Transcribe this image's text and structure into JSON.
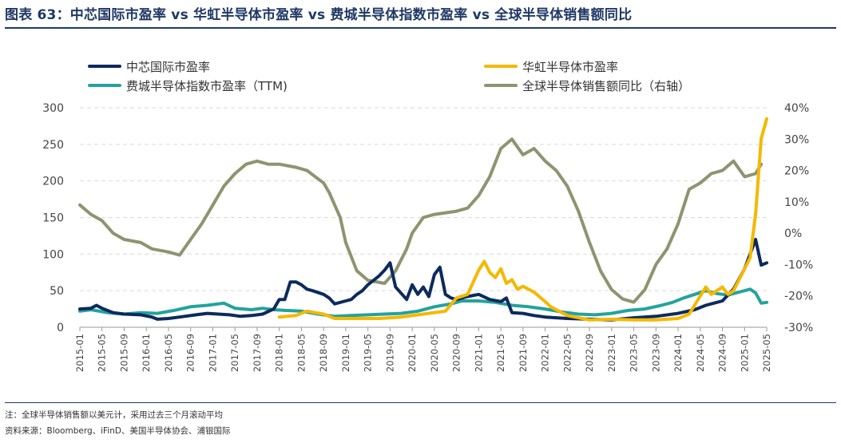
{
  "title": "图表 63：中芯国际市盈率 vs 华虹半导体市盈率 vs 费城半导体指数市盈率 vs 全球半导体销售额同比",
  "note": "注：全球半导体销售额以美元计，采用过去三个月滚动平均",
  "source": "资料来源：Bloomberg、iFinD、美国半导体协会、浦银国际",
  "chart_data": {
    "type": "line",
    "left_axis": {
      "range": [
        0,
        300
      ],
      "ticks": [
        "0",
        "50",
        "100",
        "150",
        "200",
        "250",
        "300"
      ]
    },
    "right_axis": {
      "range": [
        -30,
        40
      ],
      "ticks": [
        "-30%",
        "-20%",
        "-10%",
        "0%",
        "10%",
        "20%",
        "30%",
        "40%"
      ]
    },
    "x_axis_ticks": [
      "2015-01",
      "2015-05",
      "2015-09",
      "2016-01",
      "2016-05",
      "2016-09",
      "2017-01",
      "2017-05",
      "2017-09",
      "2018-01",
      "2018-05",
      "2018-09",
      "2019-01",
      "2019-05",
      "2019-09",
      "2020-01",
      "2020-05",
      "2020-09",
      "2021-01",
      "2021-05",
      "2021-09",
      "2022-01",
      "2022-05",
      "2022-09",
      "2023-01",
      "2023-05",
      "2023-09",
      "2024-01",
      "2024-05",
      "2024-09",
      "2025-01",
      "2025-05"
    ],
    "grid": "horizontal dashed",
    "legend_position": "top",
    "series": [
      {
        "name": "中芯国际市盈率",
        "axis": "left",
        "color": "#0d2a5e",
        "points": [
          [
            "2015-01",
            25
          ],
          [
            "2015-03",
            26
          ],
          [
            "2015-04",
            30
          ],
          [
            "2015-05",
            26
          ],
          [
            "2015-07",
            20
          ],
          [
            "2015-09",
            18
          ],
          [
            "2015-12",
            17
          ],
          [
            "2016-02",
            14
          ],
          [
            "2016-03",
            11
          ],
          [
            "2016-05",
            12
          ],
          [
            "2016-07",
            14
          ],
          [
            "2016-10",
            17
          ],
          [
            "2016-12",
            19
          ],
          [
            "2017-02",
            18
          ],
          [
            "2017-04",
            17
          ],
          [
            "2017-06",
            15
          ],
          [
            "2017-08",
            16
          ],
          [
            "2017-10",
            18
          ],
          [
            "2017-12",
            25
          ],
          [
            "2018-01",
            38
          ],
          [
            "2018-02",
            38
          ],
          [
            "2018-03",
            62
          ],
          [
            "2018-04",
            62
          ],
          [
            "2018-05",
            58
          ],
          [
            "2018-06",
            52
          ],
          [
            "2018-07",
            50
          ],
          [
            "2018-09",
            45
          ],
          [
            "2018-10",
            40
          ],
          [
            "2018-11",
            32
          ],
          [
            "2019-01",
            36
          ],
          [
            "2019-02",
            38
          ],
          [
            "2019-03",
            45
          ],
          [
            "2019-04",
            50
          ],
          [
            "2019-05",
            58
          ],
          [
            "2019-07",
            70
          ],
          [
            "2019-08",
            78
          ],
          [
            "2019-09",
            88
          ],
          [
            "2019-10",
            55
          ],
          [
            "2019-12",
            38
          ],
          [
            "2020-01",
            58
          ],
          [
            "2020-02",
            45
          ],
          [
            "2020-03",
            55
          ],
          [
            "2020-04",
            42
          ],
          [
            "2020-05",
            72
          ],
          [
            "2020-06",
            82
          ],
          [
            "2020-07",
            45
          ],
          [
            "2020-08",
            40
          ],
          [
            "2020-09",
            38
          ],
          [
            "2020-11",
            42
          ],
          [
            "2021-01",
            45
          ],
          [
            "2021-03",
            38
          ],
          [
            "2021-05",
            35
          ],
          [
            "2021-06",
            40
          ],
          [
            "2021-07",
            20
          ],
          [
            "2021-09",
            19
          ],
          [
            "2021-11",
            16
          ],
          [
            "2022-01",
            14
          ],
          [
            "2022-05",
            12
          ],
          [
            "2022-09",
            11
          ],
          [
            "2023-01",
            10
          ],
          [
            "2023-05",
            13
          ],
          [
            "2023-09",
            15
          ],
          [
            "2024-01",
            19
          ],
          [
            "2024-04",
            24
          ],
          [
            "2024-06",
            30
          ],
          [
            "2024-09",
            36
          ],
          [
            "2024-11",
            52
          ],
          [
            "2025-01",
            80
          ],
          [
            "2025-03",
            120
          ],
          [
            "2025-04",
            85
          ],
          [
            "2025-05",
            88
          ]
        ]
      },
      {
        "name": "华虹半导体市盈率",
        "axis": "left",
        "color": "#f5b800",
        "points": [
          [
            "2018-01",
            14
          ],
          [
            "2018-04",
            16
          ],
          [
            "2018-06",
            22
          ],
          [
            "2018-09",
            18
          ],
          [
            "2018-11",
            12
          ],
          [
            "2019-03",
            12
          ],
          [
            "2019-07",
            12
          ],
          [
            "2019-11",
            14
          ],
          [
            "2020-03",
            18
          ],
          [
            "2020-07",
            22
          ],
          [
            "2020-09",
            40
          ],
          [
            "2020-11",
            45
          ],
          [
            "2021-01",
            78
          ],
          [
            "2021-02",
            90
          ],
          [
            "2021-03",
            75
          ],
          [
            "2021-04",
            68
          ],
          [
            "2021-05",
            80
          ],
          [
            "2021-06",
            60
          ],
          [
            "2021-07",
            65
          ],
          [
            "2021-08",
            52
          ],
          [
            "2021-09",
            56
          ],
          [
            "2021-11",
            48
          ],
          [
            "2022-01",
            35
          ],
          [
            "2022-02",
            28
          ],
          [
            "2022-05",
            16
          ],
          [
            "2022-09",
            10
          ],
          [
            "2023-01",
            11
          ],
          [
            "2023-05",
            10
          ],
          [
            "2023-09",
            10
          ],
          [
            "2024-01",
            12
          ],
          [
            "2024-03",
            18
          ],
          [
            "2024-06",
            55
          ],
          [
            "2024-07",
            45
          ],
          [
            "2024-09",
            55
          ],
          [
            "2024-10",
            45
          ],
          [
            "2024-11",
            50
          ],
          [
            "2025-01",
            80
          ],
          [
            "2025-02",
            95
          ],
          [
            "2025-03",
            155
          ],
          [
            "2025-04",
            258
          ],
          [
            "2025-05",
            285
          ]
        ]
      },
      {
        "name": "费城半导体指数市盈率（TTM)",
        "axis": "left",
        "color": "#23a39c",
        "points": [
          [
            "2015-01",
            22
          ],
          [
            "2015-03",
            24
          ],
          [
            "2015-06",
            20
          ],
          [
            "2015-09",
            18
          ],
          [
            "2015-12",
            20
          ],
          [
            "2016-03",
            19
          ],
          [
            "2016-06",
            23
          ],
          [
            "2016-09",
            28
          ],
          [
            "2016-12",
            30
          ],
          [
            "2017-03",
            33
          ],
          [
            "2017-05",
            26
          ],
          [
            "2017-08",
            24
          ],
          [
            "2017-10",
            26
          ],
          [
            "2017-12",
            24
          ],
          [
            "2018-02",
            23
          ],
          [
            "2018-05",
            22
          ],
          [
            "2018-08",
            18
          ],
          [
            "2018-11",
            15
          ],
          [
            "2019-02",
            16
          ],
          [
            "2019-05",
            17
          ],
          [
            "2019-08",
            18
          ],
          [
            "2019-11",
            19
          ],
          [
            "2020-02",
            22
          ],
          [
            "2020-05",
            28
          ],
          [
            "2020-08",
            32
          ],
          [
            "2020-10",
            36
          ],
          [
            "2021-01",
            36
          ],
          [
            "2021-04",
            34
          ],
          [
            "2021-07",
            30
          ],
          [
            "2021-10",
            28
          ],
          [
            "2022-01",
            25
          ],
          [
            "2022-04",
            21
          ],
          [
            "2022-07",
            18
          ],
          [
            "2022-10",
            17
          ],
          [
            "2023-01",
            19
          ],
          [
            "2023-04",
            23
          ],
          [
            "2023-07",
            25
          ],
          [
            "2023-10",
            30
          ],
          [
            "2023-12",
            34
          ],
          [
            "2024-02",
            40
          ],
          [
            "2024-04",
            45
          ],
          [
            "2024-06",
            50
          ],
          [
            "2024-08",
            46
          ],
          [
            "2024-10",
            44
          ],
          [
            "2024-12",
            48
          ],
          [
            "2025-02",
            52
          ],
          [
            "2025-03",
            47
          ],
          [
            "2025-04",
            33
          ],
          [
            "2025-05",
            34
          ]
        ]
      },
      {
        "name": "全球半导体销售额同比（右轴）",
        "axis": "right",
        "color": "#8f9470",
        "points": [
          [
            "2015-01",
            9
          ],
          [
            "2015-03",
            6
          ],
          [
            "2015-05",
            4
          ],
          [
            "2015-07",
            0
          ],
          [
            "2015-09",
            -2
          ],
          [
            "2015-12",
            -3
          ],
          [
            "2016-02",
            -5
          ],
          [
            "2016-05",
            -6
          ],
          [
            "2016-07",
            -7
          ],
          [
            "2016-09",
            -2
          ],
          [
            "2016-11",
            3
          ],
          [
            "2017-01",
            9
          ],
          [
            "2017-03",
            15
          ],
          [
            "2017-05",
            19
          ],
          [
            "2017-07",
            22
          ],
          [
            "2017-09",
            23
          ],
          [
            "2017-11",
            22
          ],
          [
            "2018-01",
            22
          ],
          [
            "2018-04",
            21
          ],
          [
            "2018-06",
            20
          ],
          [
            "2018-09",
            16
          ],
          [
            "2018-10",
            13
          ],
          [
            "2018-12",
            5
          ],
          [
            "2019-01",
            -3
          ],
          [
            "2019-03",
            -12
          ],
          [
            "2019-05",
            -15
          ],
          [
            "2019-08",
            -16
          ],
          [
            "2019-10",
            -12
          ],
          [
            "2019-12",
            -5
          ],
          [
            "2020-01",
            0
          ],
          [
            "2020-03",
            5
          ],
          [
            "2020-05",
            6
          ],
          [
            "2020-09",
            7
          ],
          [
            "2020-11",
            8
          ],
          [
            "2021-01",
            12
          ],
          [
            "2021-03",
            18
          ],
          [
            "2021-05",
            27
          ],
          [
            "2021-07",
            30
          ],
          [
            "2021-09",
            25
          ],
          [
            "2021-11",
            27
          ],
          [
            "2022-01",
            23
          ],
          [
            "2022-03",
            20
          ],
          [
            "2022-05",
            15
          ],
          [
            "2022-07",
            7
          ],
          [
            "2022-09",
            -3
          ],
          [
            "2022-11",
            -12
          ],
          [
            "2023-01",
            -18
          ],
          [
            "2023-03",
            -21
          ],
          [
            "2023-05",
            -22
          ],
          [
            "2023-07",
            -18
          ],
          [
            "2023-09",
            -10
          ],
          [
            "2023-11",
            -5
          ],
          [
            "2024-01",
            3
          ],
          [
            "2024-03",
            14
          ],
          [
            "2024-05",
            16
          ],
          [
            "2024-07",
            19
          ],
          [
            "2024-09",
            20
          ],
          [
            "2024-11",
            23
          ],
          [
            "2025-01",
            18
          ],
          [
            "2025-03",
            19
          ],
          [
            "2025-04",
            22
          ]
        ]
      }
    ]
  }
}
